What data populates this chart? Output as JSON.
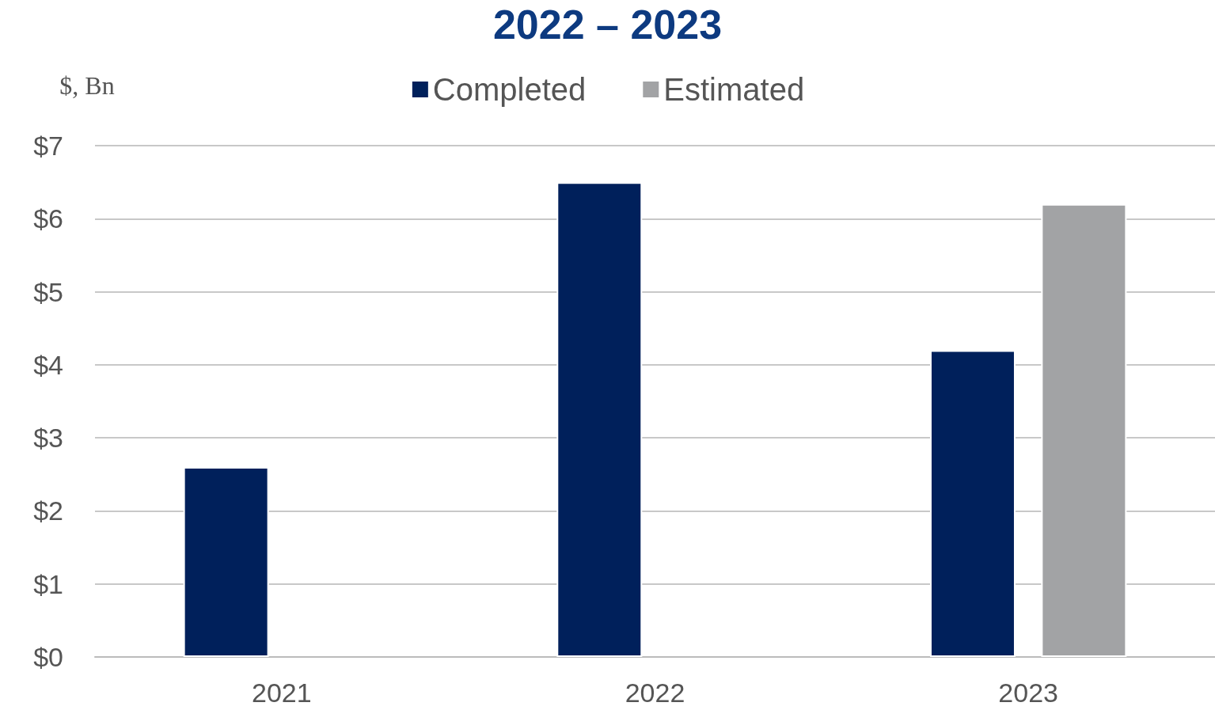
{
  "chart_data": {
    "type": "bar",
    "title": "2022 – 2023",
    "ylabel": "$, Bn",
    "categories": [
      "2021",
      "2022",
      "2023"
    ],
    "series": [
      {
        "name": "Completed",
        "color": "#00205b",
        "values": [
          2.6,
          6.5,
          4.2
        ]
      },
      {
        "name": "Estimated",
        "color": "#a2a3a5",
        "values": [
          null,
          null,
          6.2
        ]
      }
    ],
    "ylim": [
      0,
      7
    ],
    "yticks": [
      {
        "value": 0,
        "label": "$0"
      },
      {
        "value": 1,
        "label": "$1"
      },
      {
        "value": 2,
        "label": "$2"
      },
      {
        "value": 3,
        "label": "$3"
      },
      {
        "value": 4,
        "label": "$4"
      },
      {
        "value": 5,
        "label": "$5"
      },
      {
        "value": 6,
        "label": "$6"
      },
      {
        "value": 7,
        "label": "$7"
      }
    ],
    "grid": "y",
    "legend": "top"
  }
}
